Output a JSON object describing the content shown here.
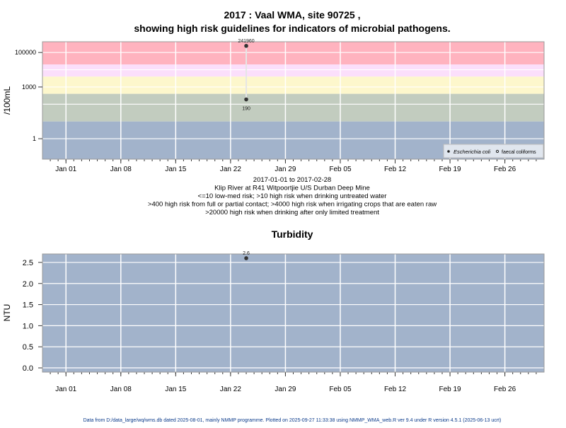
{
  "chart_data": [
    {
      "type": "scatter",
      "title_line1": "2017 : Vaal WMA, site 90725 ,",
      "title_line2": "showing high risk guidelines for indicators of microbial pathogens.",
      "ylabel": "/100mL",
      "yscale": "log",
      "ylim": [
        0.065,
        420000
      ],
      "xlim": [
        "2016-12-29",
        "2017-03-03"
      ],
      "yticks": [
        {
          "v": 1,
          "label": "1"
        },
        {
          "v": 1000,
          "label": "1000"
        },
        {
          "v": 100000,
          "label": "100000"
        }
      ],
      "ygrid": [
        1,
        100,
        1000,
        10000,
        100000
      ],
      "xticks": [
        {
          "date": "2017-01-01",
          "label": "Jan 01"
        },
        {
          "date": "2017-01-08",
          "label": "Jan 08"
        },
        {
          "date": "2017-01-15",
          "label": "Jan 15"
        },
        {
          "date": "2017-01-22",
          "label": "Jan 22"
        },
        {
          "date": "2017-01-29",
          "label": "Jan 29"
        },
        {
          "date": "2017-02-05",
          "label": "Feb 05"
        },
        {
          "date": "2017-02-12",
          "label": "Feb 12"
        },
        {
          "date": "2017-02-19",
          "label": "Feb 19"
        },
        {
          "date": "2017-02-26",
          "label": "Feb 26"
        }
      ],
      "bands": [
        {
          "from": 20000,
          "to": 420000,
          "color": "#ffb3bf"
        },
        {
          "from": 4000,
          "to": 20000,
          "color": "#fbdffb"
        },
        {
          "from": 400,
          "to": 4000,
          "color": "#fdf7cc"
        },
        {
          "from": 10,
          "to": 400,
          "color": "#c2ccbf"
        },
        {
          "from": 0.065,
          "to": 10,
          "color": "#a2b3cb"
        }
      ],
      "series": [
        {
          "name": "Escherichia coli",
          "marker": "filled",
          "points": [
            {
              "date": "2017-01-24",
              "value": 190,
              "label": "190"
            }
          ]
        },
        {
          "name": "faecal coliforms",
          "marker": "open",
          "points": [
            {
              "date": "2017-01-24",
              "value": 241960,
              "label": "241960"
            }
          ]
        }
      ],
      "legend_position": "bottom-right",
      "subtitle_lines": [
        "2017-01-01 to 2017-02-28",
        "Klip River at R41 Witpoortjie U/S Durban Deep Mine",
        "<=10 low-med risk; >10 high risk when drinking untreated water",
        ">400 high risk from full or partial contact; >4000 high risk when irrigating crops that are eaten raw",
        ">20000 high risk when drinking after only limited treatment"
      ]
    },
    {
      "type": "scatter",
      "title": "Turbidity",
      "ylabel": "NTU",
      "ylim": [
        -0.1,
        2.7
      ],
      "xlim": [
        "2016-12-29",
        "2017-03-03"
      ],
      "yticks": [
        {
          "v": 0,
          "label": "0.0"
        },
        {
          "v": 0.5,
          "label": "0.5"
        },
        {
          "v": 1,
          "label": "1.0"
        },
        {
          "v": 1.5,
          "label": "1.5"
        },
        {
          "v": 2,
          "label": "2.0"
        },
        {
          "v": 2.5,
          "label": "2.5"
        }
      ],
      "background": "#a2b3cb",
      "series": [
        {
          "name": "Turbidity",
          "points": [
            {
              "date": "2017-01-24",
              "value": 2.6,
              "label": "2.6"
            }
          ]
        }
      ]
    }
  ],
  "footer": "Data from D:/data_large/wq/wms.db dated 2025-08-01, mainly NMMP programme. Plotted on 2025-09-27 11:33:38 using NMMP_WMA_web.R ver 9.4 under R version 4.5.1 (2025-06-13 ucrt)"
}
